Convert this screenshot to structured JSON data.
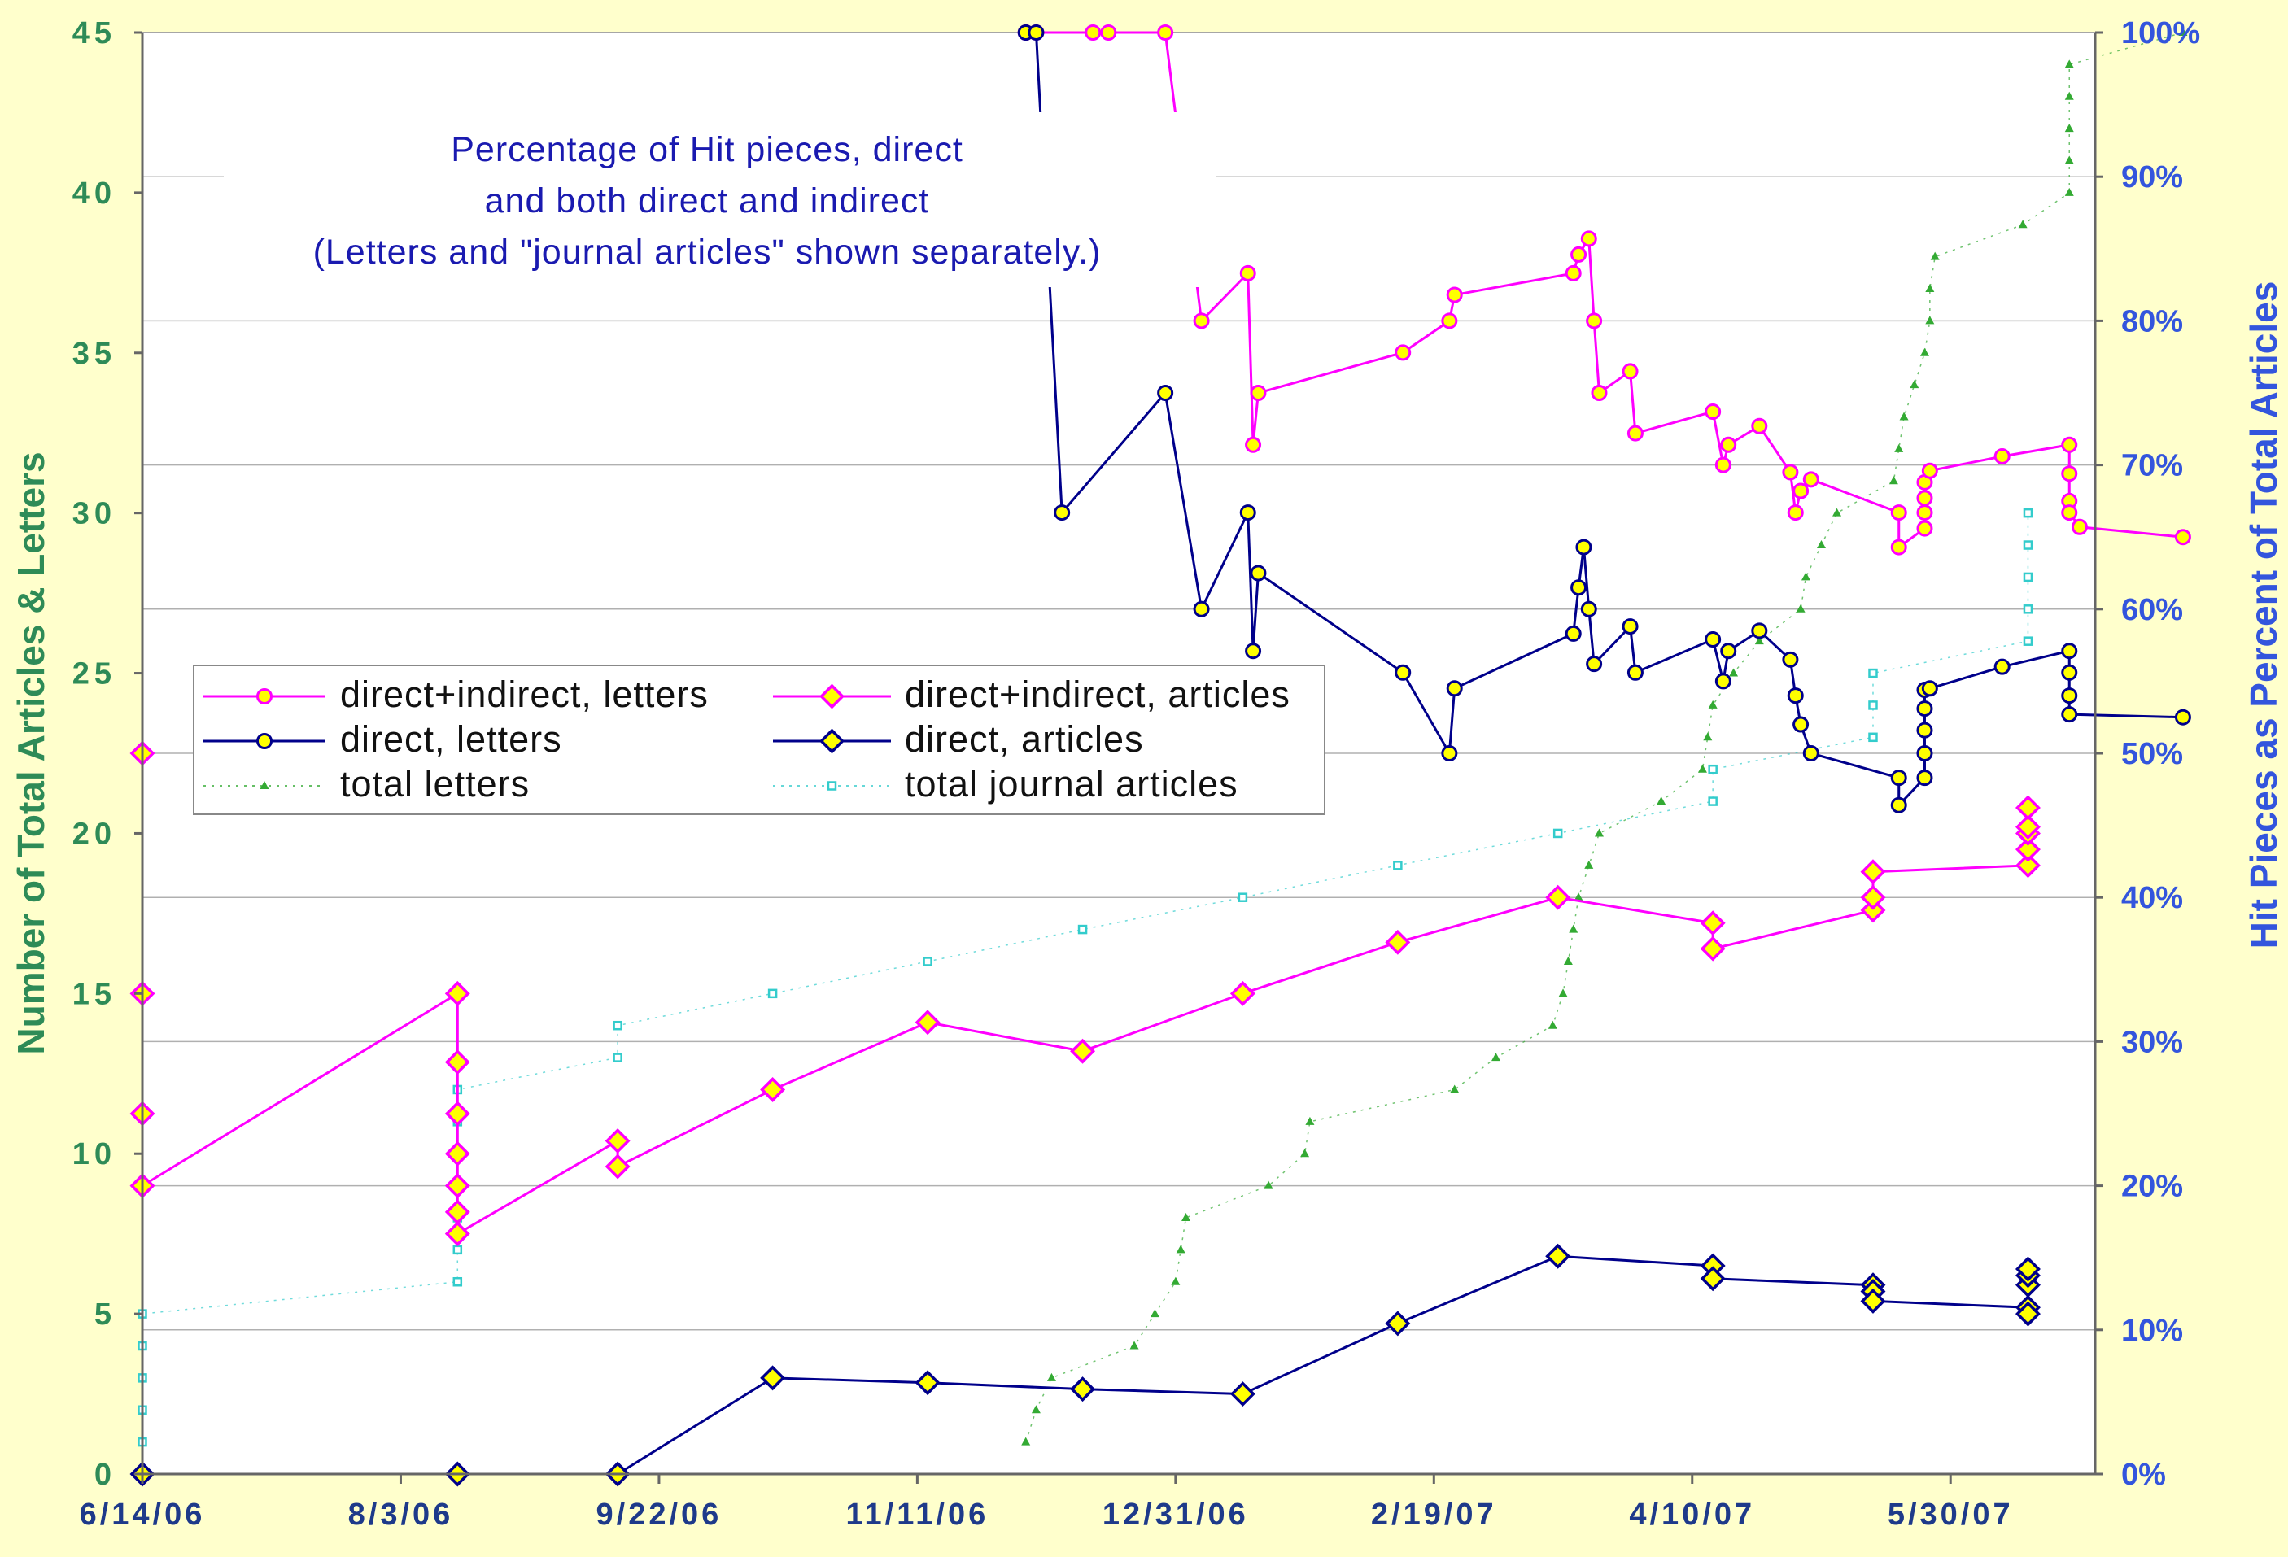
{
  "chart_data": {
    "type": "line",
    "title_lines": [
      "Percentage of Hit pieces, direct",
      "and both direct and indirect",
      "(Letters and \"journal articles\" shown separately.)"
    ],
    "ylabel_left": "Number of Total Articles & Letters",
    "ylabel_right": "Hit Pieces as Percent of Total Articles",
    "left_ticks": [
      "0",
      "5",
      "10",
      "15",
      "20",
      "25",
      "30",
      "35",
      "40",
      "45"
    ],
    "right_ticks": [
      "0%",
      "10%",
      "20%",
      "30%",
      "40%",
      "50%",
      "60%",
      "70%",
      "80%",
      "90%",
      "100%"
    ],
    "x_tick_labels": [
      "6/14/06",
      "8/3/06",
      "9/22/06",
      "11/11/06",
      "12/31/06",
      "2/19/07",
      "4/10/07",
      "5/30/07"
    ],
    "ylim_left": [
      0,
      45
    ],
    "ylim_right": [
      0,
      1
    ],
    "xlim_days_from_first_tick": [
      0,
      378
    ],
    "legend_position": "center-left",
    "grid": "horizontal",
    "colors": {
      "background": "#ffffcc",
      "plot_background": "#ffffff",
      "magenta": "#ff00ff",
      "navy": "#00008b",
      "marker_fill": "#ffff00",
      "green": "#33aa33",
      "cyan": "#33cccc",
      "left_axis_text": "#2e8b57",
      "right_axis_text": "#3355dd"
    },
    "series": [
      {
        "name": "direct+indirect,  letters",
        "axis": "right",
        "style": "line-circle",
        "color": "#ff00ff",
        "points": [
          [
            171,
            1.0
          ],
          [
            173,
            1.0
          ],
          [
            184,
            1.0
          ],
          [
            187,
            1.0
          ],
          [
            198,
            1.0
          ],
          [
            205,
            0.8
          ],
          [
            214,
            0.833
          ],
          [
            215,
            0.714
          ],
          [
            216,
            0.75
          ],
          [
            244,
            0.778
          ],
          [
            253,
            0.8
          ],
          [
            254,
            0.818
          ],
          [
            277,
            0.833
          ],
          [
            278,
            0.846
          ],
          [
            280,
            0.857
          ],
          [
            281,
            0.8
          ],
          [
            282,
            0.75
          ],
          [
            288,
            0.765
          ],
          [
            289,
            0.722
          ],
          [
            304,
            0.737
          ],
          [
            306,
            0.7
          ],
          [
            307,
            0.714
          ],
          [
            313,
            0.727
          ],
          [
            319,
            0.695
          ],
          [
            320,
            0.667
          ],
          [
            321,
            0.682
          ],
          [
            323,
            0.69
          ],
          [
            340,
            0.667
          ],
          [
            340,
            0.643
          ],
          [
            345,
            0.656
          ],
          [
            345,
            0.667
          ],
          [
            345,
            0.677
          ],
          [
            345,
            0.688
          ],
          [
            346,
            0.696
          ],
          [
            360,
            0.706
          ],
          [
            373,
            0.714
          ],
          [
            373,
            0.694
          ],
          [
            373,
            0.675
          ],
          [
            373,
            0.667
          ],
          [
            375,
            0.657
          ],
          [
            395,
            0.65
          ]
        ]
      },
      {
        "name": "direct+indirect,  articles",
        "axis": "left",
        "style": "line-diamond",
        "color": "#ff00ff",
        "points": [
          [
            0,
            22.5
          ],
          [
            0,
            15.0
          ],
          [
            0,
            11.25
          ],
          [
            0,
            9.0
          ],
          [
            61,
            15.0
          ],
          [
            61,
            12.86
          ],
          [
            61,
            11.25
          ],
          [
            61,
            10.0
          ],
          [
            61,
            9.0
          ],
          [
            61,
            8.18
          ],
          [
            61,
            7.5
          ],
          [
            92,
            10.4
          ],
          [
            92,
            9.6
          ],
          [
            122,
            12.0
          ],
          [
            152,
            14.1
          ],
          [
            182,
            13.2
          ],
          [
            213,
            15.0
          ],
          [
            243,
            16.6
          ],
          [
            274,
            18.0
          ],
          [
            304,
            17.2
          ],
          [
            304,
            16.4
          ],
          [
            335,
            17.6
          ],
          [
            335,
            18.0
          ],
          [
            335,
            18.8
          ],
          [
            365,
            19.0
          ],
          [
            365,
            19.5
          ],
          [
            365,
            20.0
          ],
          [
            365,
            20.2
          ],
          [
            365,
            20.8
          ]
        ]
      },
      {
        "name": "direct,  letters",
        "axis": "right",
        "style": "line-circle",
        "color": "#00008b",
        "points": [
          [
            171,
            1.0
          ],
          [
            173,
            1.0
          ],
          [
            178,
            0.667
          ],
          [
            198,
            0.75
          ],
          [
            205,
            0.6
          ],
          [
            214,
            0.667
          ],
          [
            215,
            0.571
          ],
          [
            216,
            0.625
          ],
          [
            244,
            0.556
          ],
          [
            253,
            0.5
          ],
          [
            254,
            0.545
          ],
          [
            277,
            0.583
          ],
          [
            278,
            0.615
          ],
          [
            279,
            0.643
          ],
          [
            280,
            0.6
          ],
          [
            281,
            0.562
          ],
          [
            288,
            0.588
          ],
          [
            289,
            0.556
          ],
          [
            304,
            0.579
          ],
          [
            306,
            0.55
          ],
          [
            307,
            0.571
          ],
          [
            313,
            0.585
          ],
          [
            319,
            0.565
          ],
          [
            320,
            0.54
          ],
          [
            321,
            0.52
          ],
          [
            323,
            0.5
          ],
          [
            340,
            0.483
          ],
          [
            340,
            0.464
          ],
          [
            345,
            0.483
          ],
          [
            345,
            0.5
          ],
          [
            345,
            0.516
          ],
          [
            345,
            0.531
          ],
          [
            345,
            0.544
          ],
          [
            346,
            0.545
          ],
          [
            360,
            0.56
          ],
          [
            373,
            0.571
          ],
          [
            373,
            0.556
          ],
          [
            373,
            0.54
          ],
          [
            373,
            0.527
          ],
          [
            395,
            0.525
          ]
        ]
      },
      {
        "name": "direct,  articles",
        "axis": "left",
        "style": "line-diamond",
        "color": "#00008b",
        "points": [
          [
            0,
            0
          ],
          [
            61,
            0
          ],
          [
            92,
            0
          ],
          [
            122,
            3.0
          ],
          [
            152,
            2.85
          ],
          [
            182,
            2.65
          ],
          [
            213,
            2.5
          ],
          [
            243,
            4.7
          ],
          [
            274,
            6.8
          ],
          [
            304,
            6.5
          ],
          [
            304,
            6.1
          ],
          [
            335,
            5.9
          ],
          [
            335,
            5.7
          ],
          [
            335,
            5.4
          ],
          [
            365,
            5.2
          ],
          [
            365,
            5.0
          ],
          [
            365,
            5.9
          ],
          [
            365,
            6.2
          ],
          [
            365,
            6.4
          ]
        ]
      },
      {
        "name": "total  letters",
        "axis": "left",
        "style": "dotted-triangle",
        "color": "#33aa33",
        "points": [
          [
            171,
            1
          ],
          [
            173,
            2
          ],
          [
            176,
            3
          ],
          [
            192,
            4
          ],
          [
            196,
            5
          ],
          [
            200,
            6
          ],
          [
            201,
            7
          ],
          [
            202,
            8
          ],
          [
            218,
            9
          ],
          [
            225,
            10
          ],
          [
            226,
            11
          ],
          [
            254,
            12
          ],
          [
            262,
            13
          ],
          [
            273,
            14
          ],
          [
            275,
            15
          ],
          [
            276,
            16
          ],
          [
            277,
            17
          ],
          [
            278,
            18
          ],
          [
            280,
            19
          ],
          [
            282,
            20
          ],
          [
            294,
            21
          ],
          [
            302,
            22
          ],
          [
            303,
            23
          ],
          [
            304,
            24
          ],
          [
            308,
            25
          ],
          [
            313,
            26
          ],
          [
            321,
            27
          ],
          [
            322,
            28
          ],
          [
            325,
            29
          ],
          [
            328,
            30
          ],
          [
            339,
            31
          ],
          [
            340,
            32
          ],
          [
            341,
            33
          ],
          [
            343,
            34
          ],
          [
            345,
            35
          ],
          [
            346,
            36
          ],
          [
            346,
            37
          ],
          [
            347,
            38
          ],
          [
            364,
            39
          ],
          [
            373,
            40
          ],
          [
            373,
            41
          ],
          [
            373,
            42
          ],
          [
            373,
            43
          ],
          [
            373,
            44
          ],
          [
            395,
            45
          ]
        ]
      },
      {
        "name": "total journal articles",
        "axis": "left",
        "style": "dotted-square",
        "color": "#33cccc",
        "points": [
          [
            0,
            1
          ],
          [
            0,
            2
          ],
          [
            0,
            3
          ],
          [
            0,
            4
          ],
          [
            0,
            5
          ],
          [
            61,
            6
          ],
          [
            61,
            7
          ],
          [
            61,
            8
          ],
          [
            61,
            9
          ],
          [
            61,
            10
          ],
          [
            61,
            11
          ],
          [
            61,
            12
          ],
          [
            92,
            13
          ],
          [
            92,
            14
          ],
          [
            122,
            15
          ],
          [
            152,
            16
          ],
          [
            182,
            17
          ],
          [
            213,
            18
          ],
          [
            243,
            19
          ],
          [
            274,
            20
          ],
          [
            304,
            21
          ],
          [
            304,
            22
          ],
          [
            335,
            23
          ],
          [
            335,
            24
          ],
          [
            335,
            25
          ],
          [
            365,
            26
          ],
          [
            365,
            27
          ],
          [
            365,
            28
          ],
          [
            365,
            29
          ],
          [
            365,
            30
          ]
        ]
      }
    ]
  },
  "legend": [
    {
      "label": "direct+indirect,  letters",
      "series": 0
    },
    {
      "label": "direct+indirect,  articles",
      "series": 1
    },
    {
      "label": "direct,  letters",
      "series": 2
    },
    {
      "label": "direct,  articles",
      "series": 3
    },
    {
      "label": "total  letters",
      "series": 4
    },
    {
      "label": "total  journal articles",
      "series": 5
    }
  ]
}
